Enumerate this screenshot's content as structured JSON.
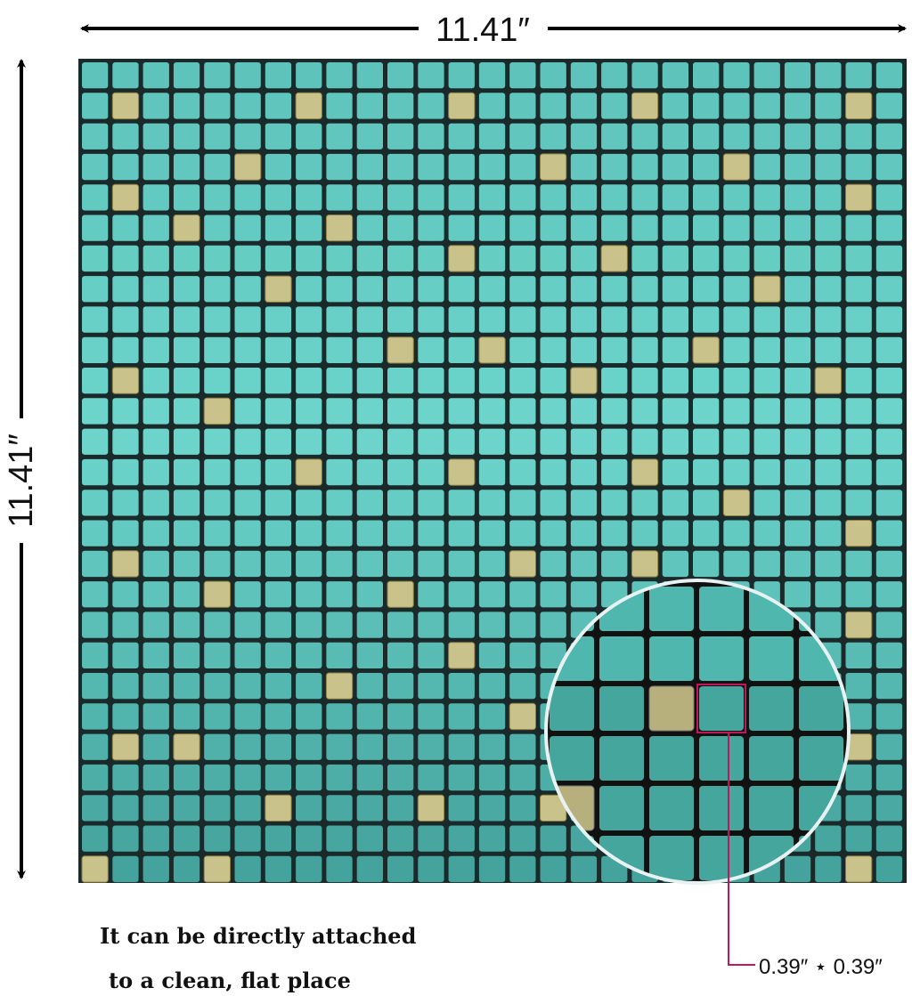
{
  "dimensions": {
    "width": "11.41″",
    "height": "11.41″"
  },
  "caption": {
    "line1": "It can be directly attached",
    "line2": "to a clean, flat place"
  },
  "tile_size": "0.39″ ⋆ 0.39″"
}
